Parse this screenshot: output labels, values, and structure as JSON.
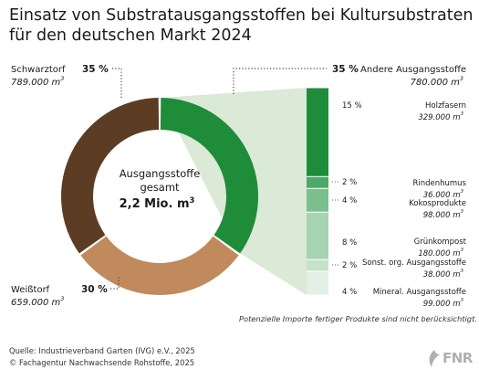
{
  "title_line1": "Einsatz von Substratausgangsstoffen bei Kultursubstraten",
  "title_line2": "für den deutschen Markt 2024",
  "colors": {
    "schwarztorf": "#5c3d24",
    "weisstorf": "#c08a5c",
    "andere": "#1f8c3a",
    "holzfasern": "#1f8c3a",
    "rindenhumus": "#4fa86a",
    "kokos": "#7cbf8f",
    "gruenkompost": "#a6d3b0",
    "sonst": "#c7e2cc",
    "mineral": "#e3f0e5",
    "connector": "#dbe9d7"
  },
  "chart_data": {
    "type": "pie",
    "center_label_1": "Ausgangsstoffe",
    "center_label_2": "gesamt",
    "center_total": "2,2 Mio. m",
    "center_total_sup": "3",
    "slices": [
      {
        "name": "Andere Ausgangsstoffe",
        "percent": 35,
        "percent_label": "35 %",
        "amount": "780.000 m",
        "amount_sup": "3"
      },
      {
        "name": "Weißtorf",
        "percent": 30,
        "percent_label": "30 %",
        "amount": "659.000 m",
        "amount_sup": "3"
      },
      {
        "name": "Schwarztorf",
        "percent": 35,
        "percent_label": "35 %",
        "amount": "789.000 m",
        "amount_sup": "3"
      }
    ],
    "breakdown": [
      {
        "name": "Holzfasern",
        "percent": 15,
        "percent_label": "15 %",
        "amount": "329.000 m",
        "amount_sup": "3"
      },
      {
        "name": "Rindenhumus",
        "percent": 2,
        "percent_label": "2 %",
        "amount": "36.000 m",
        "amount_sup": "3"
      },
      {
        "name": "Kokosprodukte",
        "percent": 4,
        "percent_label": "4 %",
        "amount": "98.000 m",
        "amount_sup": "3"
      },
      {
        "name": "Grünkompost",
        "percent": 8,
        "percent_label": "8 %",
        "amount": "180.000 m",
        "amount_sup": "3"
      },
      {
        "name": "Sonst. org. Ausgangsstoffe",
        "percent": 2,
        "percent_label": "2 %",
        "amount": "38.000 m",
        "amount_sup": "3"
      },
      {
        "name": "Mineral. Ausgangsstoffe",
        "percent": 4,
        "percent_label": "4 %",
        "amount": "99.000 m",
        "amount_sup": "3"
      }
    ]
  },
  "note": "Potenzielle Importe fertiger Produkte sind nicht berücksichtigt.",
  "source_line1": "Quelle: Industrieverband Garten (IVG) e.V., 2025",
  "source_line2": "© Fachagentur Nachwachsende Rohstoffe, 2025",
  "logo_text": "FNR"
}
